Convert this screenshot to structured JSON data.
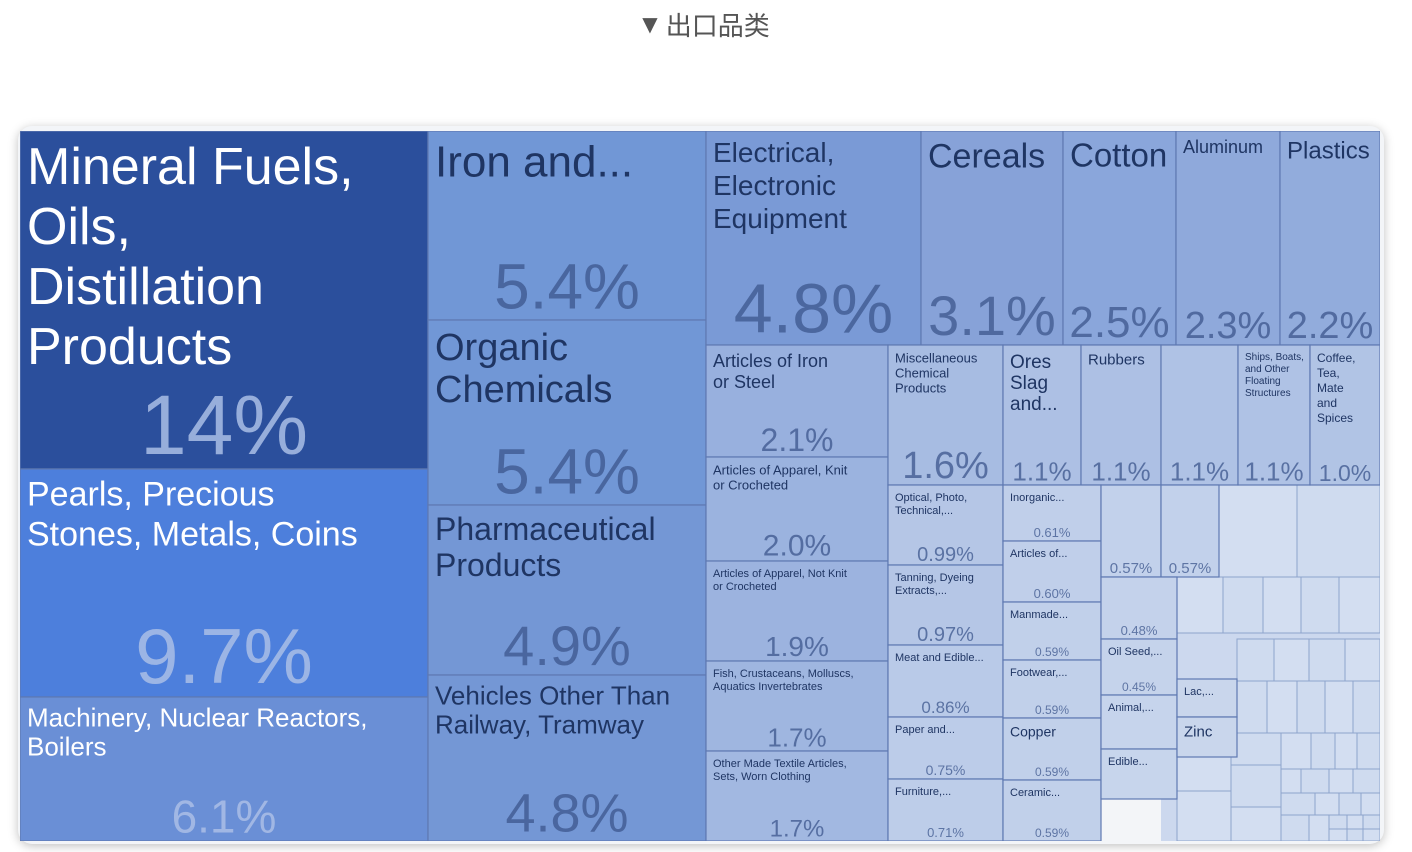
{
  "header": {
    "toggle_icon": "triangle-down-icon",
    "title": "出口品类"
  },
  "chart_data": {
    "type": "treemap",
    "unit": "%",
    "cells": [
      {
        "label": "Mineral Fuels, Oils, Distillation Products",
        "value": "14%",
        "color": "#2b4f9c"
      },
      {
        "label": "Pearls, Precious Stones, Metals, Coins",
        "value": "9.7%",
        "color": "#4d7fdc"
      },
      {
        "label": "Machinery, Nuclear Reactors, Boilers",
        "value": "6.1%",
        "color": "#6a8fd6"
      },
      {
        "label": "Iron and...",
        "value": "5.4%",
        "color": "#7197d6"
      },
      {
        "label": "Organic Chemicals",
        "value": "5.4%",
        "color": "#7197d6"
      },
      {
        "label": "Pharmaceutical Products",
        "value": "4.9%",
        "color": "#7497d5"
      },
      {
        "label": "Vehicles Other Than Railway, Tramway",
        "value": "4.8%",
        "color": "#7497d5"
      },
      {
        "label": "Electrical, Electronic Equipment",
        "value": "4.8%",
        "color": "#7a9ad6"
      },
      {
        "label": "Cereals",
        "value": "3.1%",
        "color": "#87a2d8"
      },
      {
        "label": "Cotton",
        "value": "2.5%",
        "color": "#8aa6db"
      },
      {
        "label": "Aluminum",
        "value": "2.3%",
        "color": "#8fa9db"
      },
      {
        "label": "Plastics",
        "value": "2.2%",
        "color": "#92acdc"
      },
      {
        "label": "Articles of Iron or Steel",
        "value": "2.1%",
        "color": "#98b0de"
      },
      {
        "label": "Articles of Apparel, Knit or Crocheted",
        "value": "2.0%",
        "color": "#9bb3df"
      },
      {
        "label": "Articles of Apparel, Not Knit or Crocheted",
        "value": "1.9%",
        "color": "#9cb3df"
      },
      {
        "label": "Fish, Crustaceans, Molluscs, Aquatics Invertebrates",
        "value": "1.7%",
        "color": "#9fb6e0"
      },
      {
        "label": "Other Made Textile Articles, Sets, Worn Clothing",
        "value": "1.7%",
        "color": "#a2b8e1"
      },
      {
        "label": "Miscellaneous Chemical Products",
        "value": "1.6%",
        "color": "#a7bce2"
      },
      {
        "label": "Ores Slag and...",
        "value": "1.1%",
        "color": "#adc0e4"
      },
      {
        "label": "Rubbers",
        "value": "1.1%",
        "color": "#adc0e4"
      },
      {
        "label": "",
        "value": "1.1%",
        "color": "#afc2e5"
      },
      {
        "label": "Ships, Boats, and Other Floating Structures",
        "value": "1.1%",
        "color": "#afc2e5"
      },
      {
        "label": "Coffee, Tea, Mate and Spices",
        "value": "1.0%",
        "color": "#b1c4e5"
      },
      {
        "label": "Optical, Photo, Technical,...",
        "value": "0.99%",
        "color": "#b5c6e6"
      },
      {
        "label": "Tanning, Dyeing Extracts,...",
        "value": "0.97%",
        "color": "#b5c6e6"
      },
      {
        "label": "Meat and Edible...",
        "value": "0.86%",
        "color": "#b9cae8"
      },
      {
        "label": "Paper and...",
        "value": "0.75%",
        "color": "#bccce9"
      },
      {
        "label": "Furniture,...",
        "value": "0.71%",
        "color": "#bdcde9"
      },
      {
        "label": "Inorganic...",
        "value": "0.61%",
        "color": "#c0cfea"
      },
      {
        "label": "Articles of...",
        "value": "0.60%",
        "color": "#c0cfea"
      },
      {
        "label": "Manmade...",
        "value": "0.59%",
        "color": "#c1d0ea"
      },
      {
        "label": "Footwear,...",
        "value": "0.59%",
        "color": "#c1d0ea"
      },
      {
        "label": "Copper",
        "value": "0.59%",
        "color": "#c1d0ea"
      },
      {
        "label": "Ceramic...",
        "value": "0.59%",
        "color": "#c1d0ea"
      },
      {
        "label": "",
        "value": "0.57%",
        "color": "#c2d1eb"
      },
      {
        "label": "",
        "value": "0.57%",
        "color": "#c2d1eb"
      },
      {
        "label": "",
        "value": "0.48%",
        "color": "#c4d2eb"
      },
      {
        "label": "Oil Seed,...",
        "value": "0.45%",
        "color": "#c5d3eb"
      },
      {
        "label": "Animal,...",
        "value": "",
        "color": "#c6d4ec"
      },
      {
        "label": "Edible...",
        "value": "",
        "color": "#c7d5ec"
      },
      {
        "label": "Lac,...",
        "value": "",
        "color": "#c9d6ec"
      },
      {
        "label": "Zinc",
        "value": "",
        "color": "#c9d6ec"
      }
    ]
  }
}
